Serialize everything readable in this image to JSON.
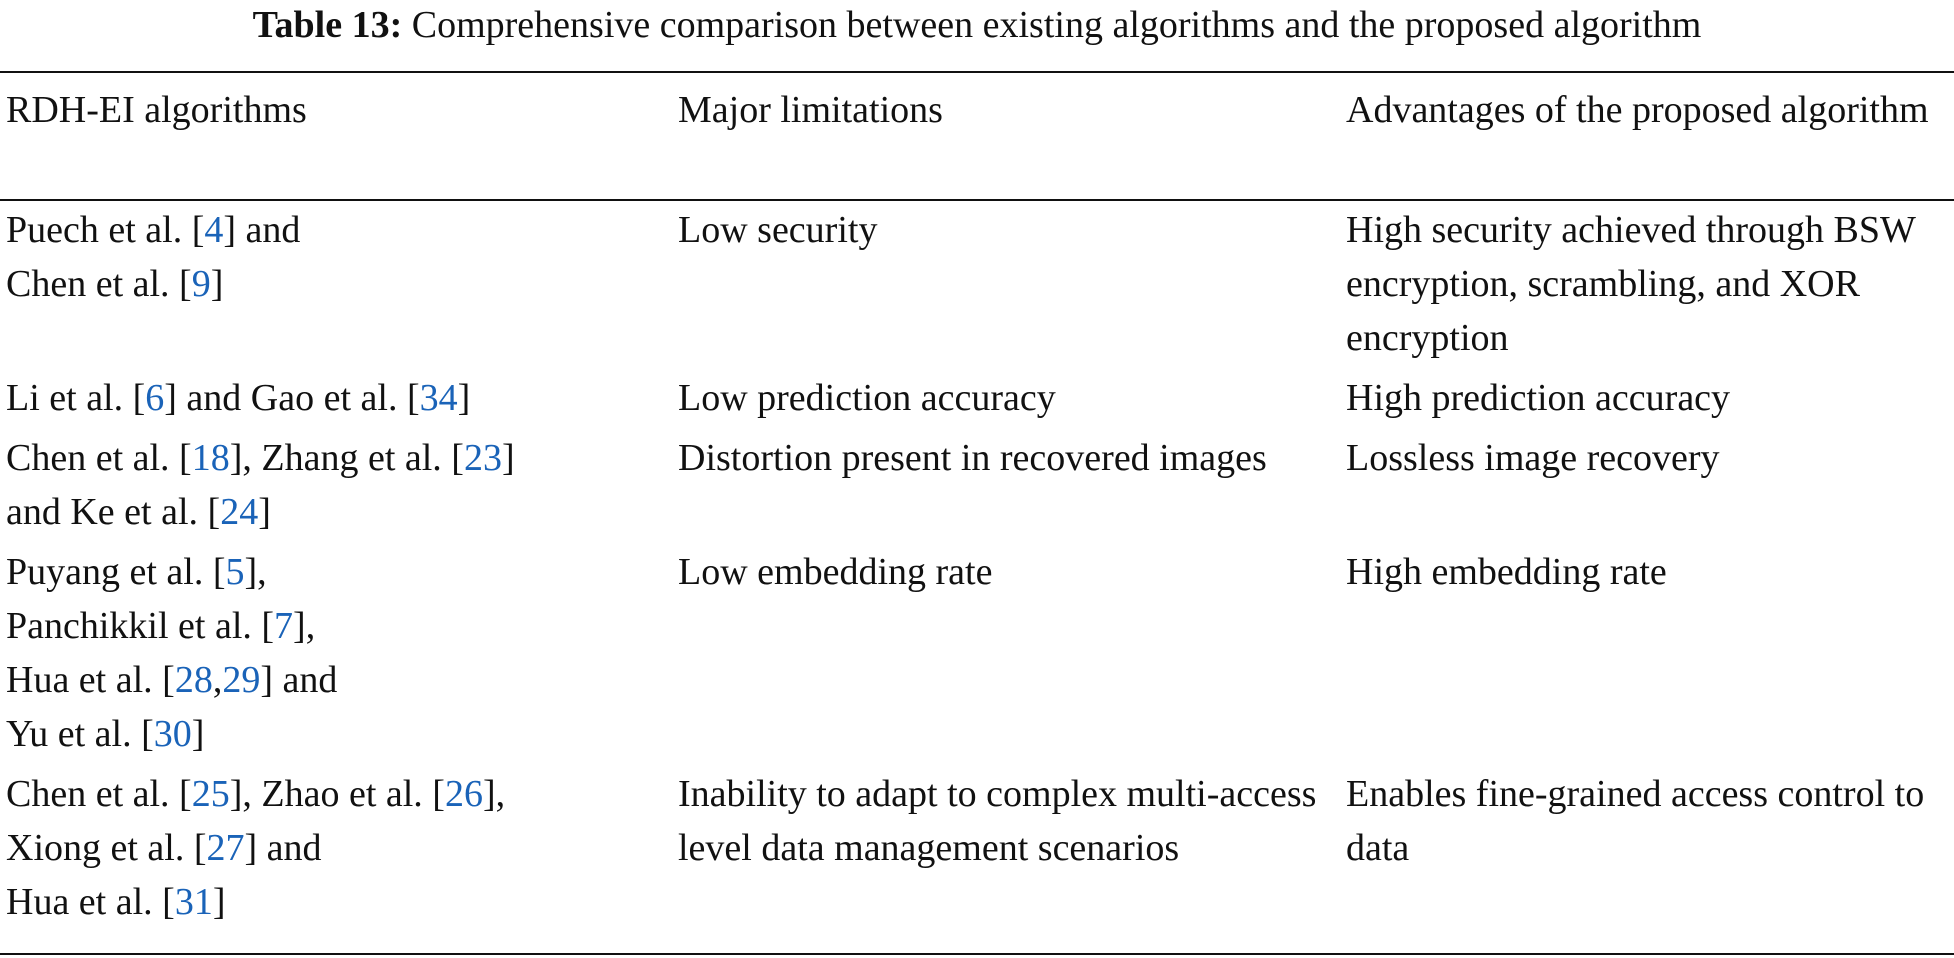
{
  "caption": {
    "label": "Table 13:",
    "text": "Comprehensive comparison between existing algorithms and the proposed algorithm"
  },
  "headers": [
    "RDH-EI algorithms",
    "Major limitations",
    "Advantages of the proposed algorithm"
  ],
  "rows": [
    {
      "algorithms": [
        {
          "t": "Puech et al. ["
        },
        {
          "t": "4",
          "ref": true
        },
        {
          "t": "] and"
        },
        {
          "br": true
        },
        {
          "t": "Chen et al. ["
        },
        {
          "t": "9",
          "ref": true
        },
        {
          "t": "]"
        }
      ],
      "limitation": "Low security",
      "advantage": "High security achieved through BSW encryption, scrambling, and XOR encryption"
    },
    {
      "algorithms": [
        {
          "t": "Li et al. ["
        },
        {
          "t": "6",
          "ref": true
        },
        {
          "t": "] and Gao et al. ["
        },
        {
          "t": "34",
          "ref": true
        },
        {
          "t": "]"
        }
      ],
      "limitation": "Low prediction accuracy",
      "advantage": "High prediction accuracy"
    },
    {
      "algorithms": [
        {
          "t": "Chen et al. ["
        },
        {
          "t": "18",
          "ref": true
        },
        {
          "t": "], Zhang et al. ["
        },
        {
          "t": "23",
          "ref": true
        },
        {
          "t": "]"
        },
        {
          "br": true
        },
        {
          "t": "and Ke et al. ["
        },
        {
          "t": "24",
          "ref": true
        },
        {
          "t": "]"
        }
      ],
      "limitation": "Distortion present in recovered images",
      "advantage": "Lossless image recovery"
    },
    {
      "algorithms": [
        {
          "t": "Puyang et al. ["
        },
        {
          "t": "5",
          "ref": true
        },
        {
          "t": "],"
        },
        {
          "br": true
        },
        {
          "t": "Panchikkil et al. ["
        },
        {
          "t": "7",
          "ref": true
        },
        {
          "t": "],"
        },
        {
          "br": true
        },
        {
          "t": "Hua et al. ["
        },
        {
          "t": "28",
          "ref": true
        },
        {
          "t": ","
        },
        {
          "t": "29",
          "ref": true
        },
        {
          "t": "] and"
        },
        {
          "br": true
        },
        {
          "t": "Yu et al. ["
        },
        {
          "t": "30",
          "ref": true
        },
        {
          "t": "]"
        }
      ],
      "limitation": "Low embedding rate",
      "advantage": "High embedding rate"
    },
    {
      "algorithms": [
        {
          "t": "Chen et al. ["
        },
        {
          "t": "25",
          "ref": true
        },
        {
          "t": "], Zhao et al. ["
        },
        {
          "t": "26",
          "ref": true
        },
        {
          "t": "],"
        },
        {
          "br": true
        },
        {
          "t": "Xiong et al. ["
        },
        {
          "t": "27",
          "ref": true
        },
        {
          "t": "] and"
        },
        {
          "br": true
        },
        {
          "t": "Hua et al. ["
        },
        {
          "t": "31",
          "ref": true
        },
        {
          "t": "]"
        }
      ],
      "limitation": "Inability to adapt to complex multi-access level data management scenarios",
      "advantage": "Enables fine-grained access control to data"
    }
  ],
  "colors": {
    "text": "#111111",
    "reference_link": "#1a63b8"
  }
}
